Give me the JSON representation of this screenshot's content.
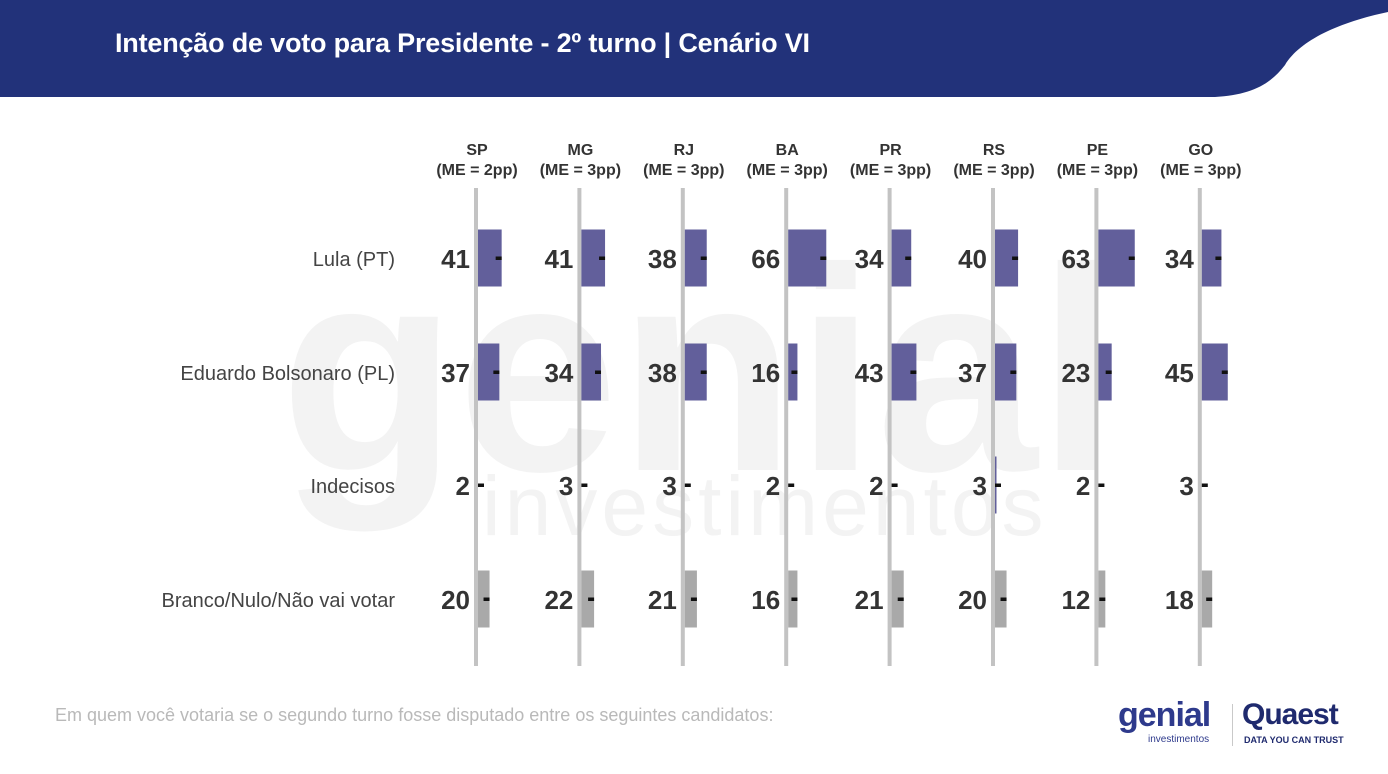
{
  "header": {
    "title": "Intenção de voto para Presidente - 2º turno | Cenário VI"
  },
  "watermark": {
    "word": "genial",
    "sub": "investimentos"
  },
  "footnote": "Em quem você votaria se o segundo turno fosse disputado entre os seguintes candidatos:",
  "logos": {
    "genial": "genial",
    "genial_sub": "investimentos",
    "quaest": "Quaest",
    "quaest_tagline": "DATA YOU CAN TRUST"
  },
  "colors": {
    "header_bg": "#22327a",
    "candidate_bar": "#625f9b",
    "other_bar": "#a9a9a9",
    "axis_line": "#c3c3c3",
    "value_text": "#333333"
  },
  "chart_data": {
    "type": "bar",
    "categories": [
      "Lula (PT)",
      "Eduardo Bolsonaro (PL)",
      "Indecisos",
      "Branco/Nulo/Não vai votar"
    ],
    "columns": [
      {
        "state": "SP",
        "margin": "(ME = 2pp)",
        "values": [
          41,
          37,
          2,
          20
        ]
      },
      {
        "state": "MG",
        "margin": "(ME = 3pp)",
        "values": [
          41,
          34,
          3,
          22
        ]
      },
      {
        "state": "RJ",
        "margin": "(ME = 3pp)",
        "values": [
          38,
          38,
          3,
          21
        ]
      },
      {
        "state": "BA",
        "margin": "(ME = 3pp)",
        "values": [
          66,
          16,
          2,
          16
        ]
      },
      {
        "state": "PR",
        "margin": "(ME = 3pp)",
        "values": [
          34,
          43,
          2,
          21
        ]
      },
      {
        "state": "RS",
        "margin": "(ME = 3pp)",
        "values": [
          40,
          37,
          3,
          20
        ]
      },
      {
        "state": "PE",
        "margin": "(ME = 3pp)",
        "values": [
          63,
          23,
          2,
          12
        ]
      },
      {
        "state": "GO",
        "margin": "(ME = 3pp)",
        "values": [
          34,
          45,
          3,
          18
        ]
      }
    ],
    "bar_color_by_category": [
      "candidate",
      "candidate",
      "candidate",
      "other"
    ]
  }
}
